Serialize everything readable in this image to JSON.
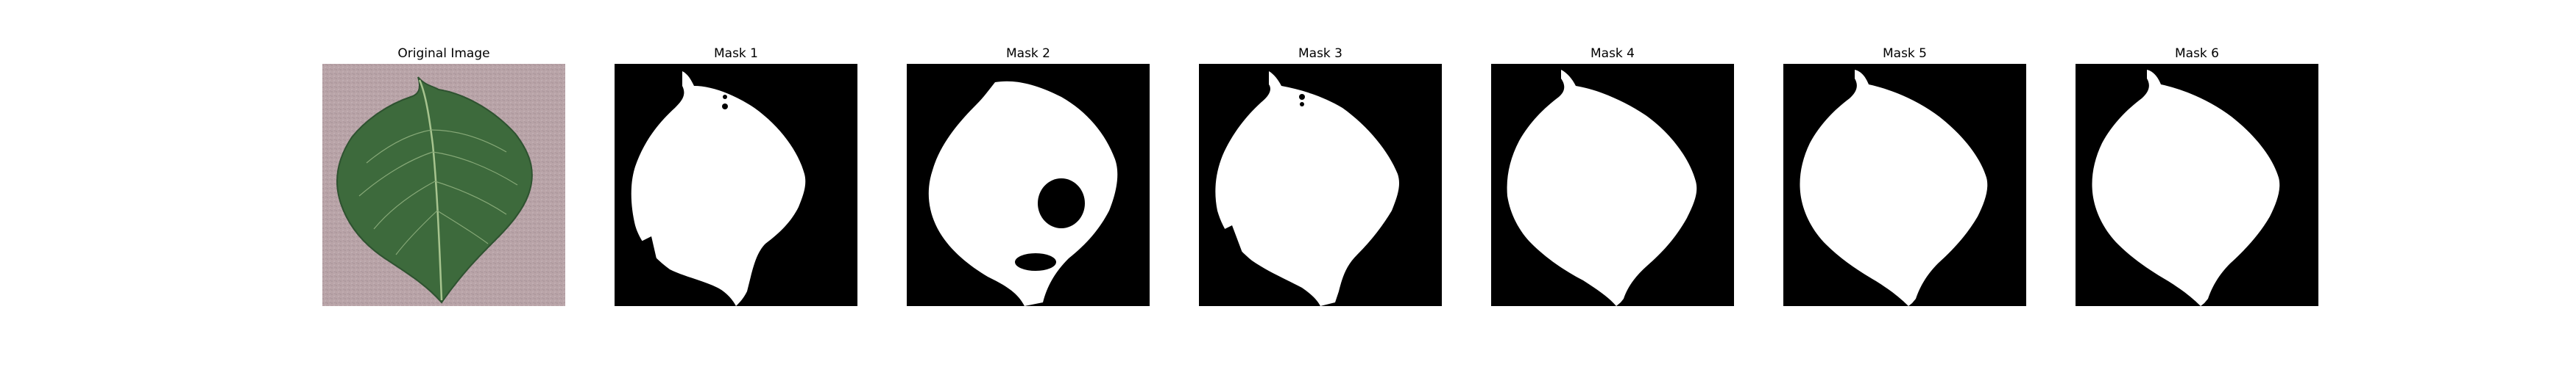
{
  "figure": {
    "panels": [
      {
        "title": "Original Image",
        "kind": "photo"
      },
      {
        "title": "Mask 1",
        "kind": "mask"
      },
      {
        "title": "Mask 2",
        "kind": "mask"
      },
      {
        "title": "Mask 3",
        "kind": "mask"
      },
      {
        "title": "Mask 4",
        "kind": "mask"
      },
      {
        "title": "Mask 5",
        "kind": "mask"
      },
      {
        "title": "Mask 6",
        "kind": "mask"
      }
    ]
  },
  "colors": {
    "background": "#ffffff",
    "mask_background": "#000000",
    "mask_foreground": "#ffffff",
    "leaf_green": "#3f6b3f",
    "leaf_vein": "#9cbf86",
    "backdrop_pink": "#b8a3a6"
  }
}
